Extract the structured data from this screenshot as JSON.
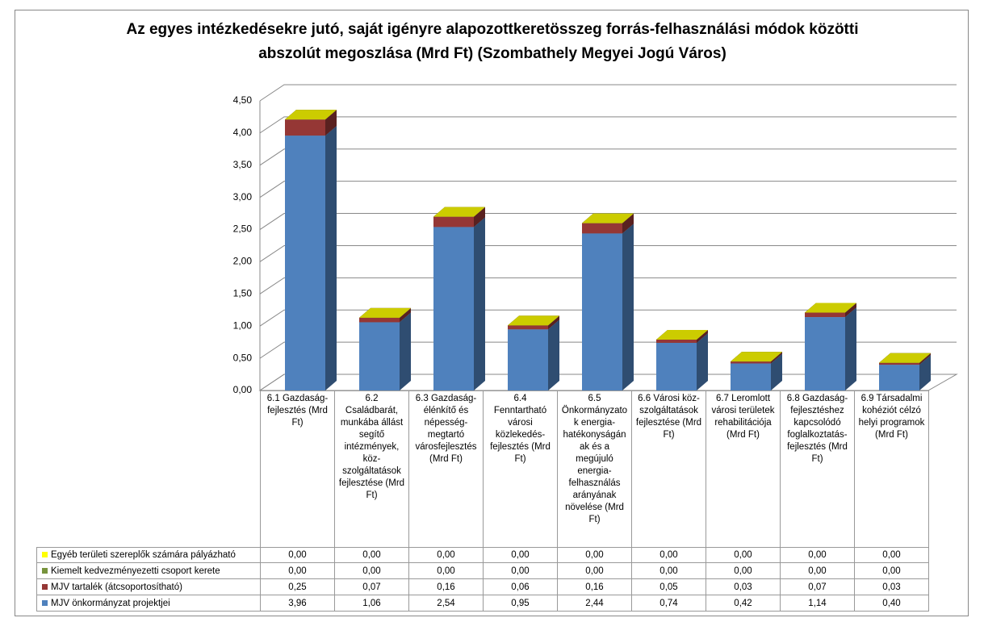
{
  "chart_data": {
    "type": "bar3d_stacked",
    "title": "Az egyes intézkedésekre jutó, saját igényre alapozottkeretösszeg forrás-felhasználási módok közötti abszolút megoszlása (Mrd Ft) (Szombathely Megyei Jogú Város)",
    "categories": [
      "6.1 Gazdaság-fejlesztés (Mrd Ft)",
      "6.2 Családbarát, munkába állást segítő intézmények, köz-szolgáltatások fejlesztése (Mrd Ft)",
      "6.3 Gazdaság-élénkítő és népesség-megtartó városfejlesztés (Mrd Ft)",
      "6.4 Fenntartható városi közlekedés-fejlesztés (Mrd Ft)",
      "6.5 Önkormányzatok energia-hatékonyságának és a megújuló energia-felhasználás arányának növelése (Mrd Ft)",
      "6.6 Városi köz-szolgáltatások fejlesztése (Mrd Ft)",
      "6.7 Leromlott városi területek rehabilitációja (Mrd Ft)",
      "6.8 Gazdaság-fejlesztéshez kapcsolódó foglalkoztatás-fejlesztés (Mrd Ft)",
      "6.9 Társadalmi kohéziót célzó helyi programok (Mrd Ft)"
    ],
    "series": [
      {
        "name": "MJV önkormányzat projektjei",
        "color": "#4f81bd",
        "values": [
          3.96,
          1.06,
          2.54,
          0.95,
          2.44,
          0.74,
          0.42,
          1.14,
          0.4
        ],
        "value_labels": [
          "3,96",
          "1,06",
          "2,54",
          "0,95",
          "2,44",
          "0,74",
          "0,42",
          "1,14",
          "0,40"
        ]
      },
      {
        "name": "MJV tartalék (átcsoportosítható)",
        "color": "#953735",
        "values": [
          0.25,
          0.07,
          0.16,
          0.06,
          0.16,
          0.05,
          0.03,
          0.07,
          0.03
        ],
        "value_labels": [
          "0,25",
          "0,07",
          "0,16",
          "0,06",
          "0,16",
          "0,05",
          "0,03",
          "0,07",
          "0,03"
        ]
      },
      {
        "name": "Kiemelt kedvezményezetti csoport kerete",
        "color": "#77933c",
        "values": [
          0,
          0,
          0,
          0,
          0,
          0,
          0,
          0,
          0
        ],
        "value_labels": [
          "0,00",
          "0,00",
          "0,00",
          "0,00",
          "0,00",
          "0,00",
          "0,00",
          "0,00",
          "0,00"
        ]
      },
      {
        "name": "Egyéb területi szereplők számára pályázható",
        "color": "#ffff00",
        "values": [
          0,
          0,
          0,
          0,
          0,
          0,
          0,
          0,
          0
        ],
        "value_labels": [
          "0,00",
          "0,00",
          "0,00",
          "0,00",
          "0,00",
          "0,00",
          "0,00",
          "0,00",
          "0,00"
        ]
      }
    ],
    "ylim": [
      0,
      4.5
    ],
    "yticks": [
      {
        "value": 0,
        "label": "0,00"
      },
      {
        "value": 0.5,
        "label": "0,50"
      },
      {
        "value": 1,
        "label": "1,00"
      },
      {
        "value": 1.5,
        "label": "1,50"
      },
      {
        "value": 2,
        "label": "2,00"
      },
      {
        "value": 2.5,
        "label": "2,50"
      },
      {
        "value": 3,
        "label": "3,00"
      },
      {
        "value": 3.5,
        "label": "3,50"
      },
      {
        "value": 4,
        "label": "4,00"
      },
      {
        "value": 4.5,
        "label": "4,50"
      }
    ],
    "grid": true
  }
}
